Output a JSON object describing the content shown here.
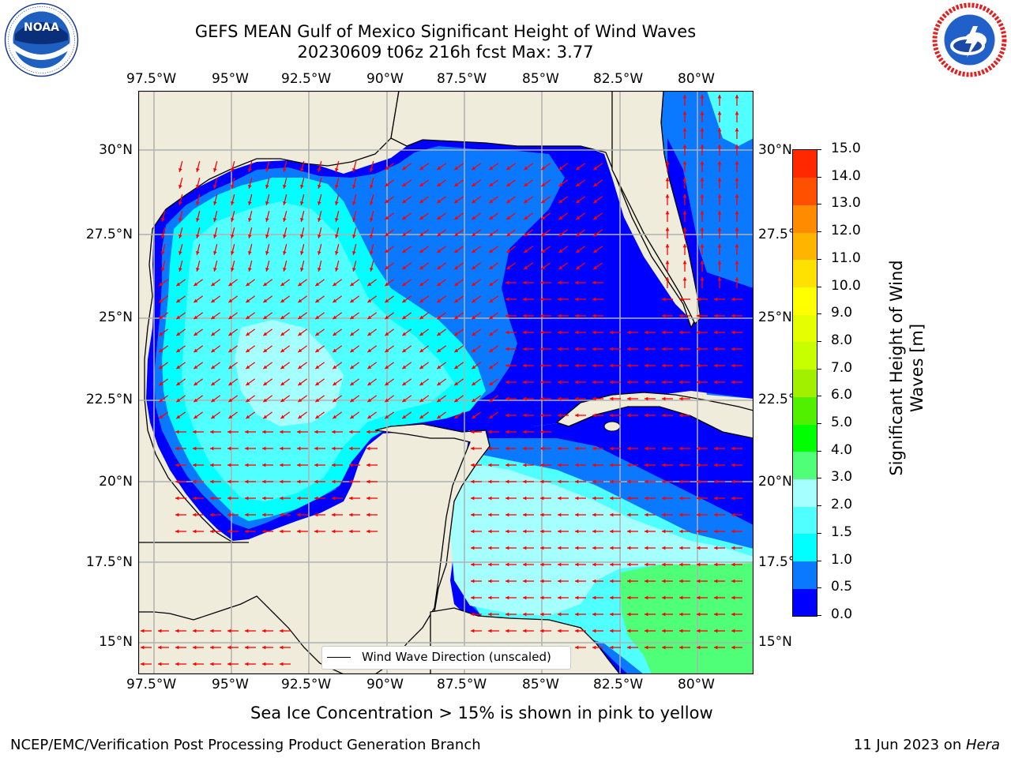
{
  "header": {
    "title_line1": "GEFS MEAN Gulf of Mexico Significant Height of Wind Waves",
    "title_line2": "20230609 t06z 216h fcst   Max: 3.77"
  },
  "logos": {
    "left": {
      "name": "noaa-logo",
      "text": "NOAA",
      "ring_text": "NATIONAL OCEANIC AND ATMOSPHERIC ADMINISTRATION · U.S. DEPARTMENT OF COMMERCE"
    },
    "right": {
      "name": "nws-logo",
      "ring_text": "NATIONAL WEATHER SERVICE"
    }
  },
  "map": {
    "lon_labels": [
      "97.5°W",
      "95°W",
      "92.5°W",
      "90°W",
      "87.5°W",
      "85°W",
      "82.5°W",
      "80°W"
    ],
    "lat_labels": [
      "30°N",
      "27.5°N",
      "25°N",
      "22.5°N",
      "20°N",
      "17.5°N",
      "15°N"
    ],
    "legend_label": "Wind Wave Direction (unscaled)",
    "colors": {
      "land": "#efecdb",
      "arrows": "#ff0000",
      "grid": "#b0b0b0",
      "coast": "#000000"
    }
  },
  "colorbar": {
    "label_line1": "Significant Height of Wind",
    "label_line2": "Waves [m]",
    "ticks": [
      "0.0",
      "0.5",
      "1.0",
      "1.5",
      "2.0",
      "3.0",
      "4.0",
      "5.0",
      "6.0",
      "7.0",
      "8.0",
      "9.0",
      "10.0",
      "11.0",
      "12.0",
      "13.0",
      "14.0",
      "15.0"
    ],
    "colors": [
      "#0000ff",
      "#0a78ff",
      "#00ffff",
      "#50ffff",
      "#a5ffff",
      "#50ff78",
      "#00ff00",
      "#50f000",
      "#a0f000",
      "#c8ff00",
      "#e6ff00",
      "#ffff00",
      "#ffe100",
      "#ffb400",
      "#ff8c00",
      "#ff5000",
      "#ff2800"
    ]
  },
  "subnote": "Sea Ice Concentration > 15% is shown in pink to yellow",
  "footer": {
    "left": "NCEP/EMC/Verification Post Processing Product Generation Branch",
    "right_date": "11 Jun 2023 on ",
    "right_host": "Hera"
  }
}
